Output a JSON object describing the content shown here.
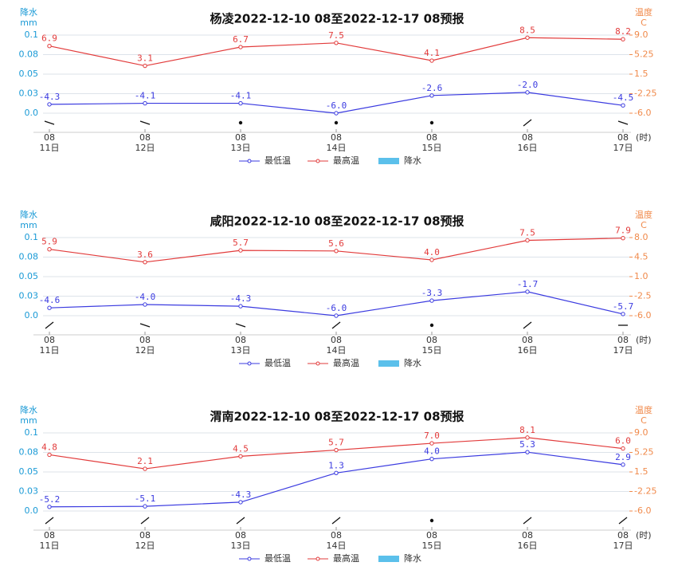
{
  "chart_data": [
    {
      "type": "line",
      "title": "杨凌2022-12-10 08至2022-12-17 08预报",
      "ylabel": "降水",
      "yunit": "mm",
      "y2label": "温度",
      "y2unit": "C",
      "x_unit": "(时)",
      "categories": [
        [
          "08",
          "11日"
        ],
        [
          "08",
          "12日"
        ],
        [
          "08",
          "13日"
        ],
        [
          "08",
          "14日"
        ],
        [
          "08",
          "15日"
        ],
        [
          "08",
          "16日"
        ],
        [
          "08",
          "17日"
        ]
      ],
      "ylim": [
        0,
        0.1
      ],
      "yticks": [
        {
          "value": 0,
          "label": "0.0"
        },
        {
          "value": 0.025,
          "label": "0.03"
        },
        0.05,
        {
          "value": 0.075,
          "label": "0.08"
        },
        0.1
      ],
      "y2lim": [
        -6,
        9
      ],
      "y2ticks": [
        {
          "value": -6,
          "label": "-6.0"
        },
        -2.25,
        1.5,
        5.25,
        {
          "value": 9,
          "label": "9.0"
        }
      ],
      "grid": true,
      "series": [
        {
          "name": "最低温",
          "color": "#3b3be0",
          "axis": "y2",
          "values": [
            -4.3,
            -4.1,
            -4.1,
            -6.0,
            -2.6,
            -2.0,
            -4.5
          ],
          "value_labels": [
            "-4.3",
            "-4.1",
            "-4.1",
            "-6.0",
            "-2.6",
            "-2.0",
            "-4.5"
          ]
        },
        {
          "name": "最高温",
          "color": "#e23b3b",
          "axis": "y2",
          "values": [
            6.9,
            3.1,
            6.7,
            7.5,
            4.1,
            8.5,
            8.2
          ],
          "value_labels": [
            "6.9",
            "3.1",
            "6.7",
            "7.5",
            "4.1",
            "8.5",
            "8.2"
          ]
        },
        {
          "name": "降水",
          "color": "#5bc0eb",
          "values": [
            0,
            0,
            0,
            0,
            0,
            0,
            0
          ]
        }
      ]
    },
    {
      "type": "line",
      "title": "咸阳2022-12-10 08至2022-12-17 08预报",
      "ylabel": "降水",
      "yunit": "mm",
      "y2label": "温度",
      "y2unit": "C",
      "x_unit": "(时)",
      "categories": [
        [
          "08",
          "11日"
        ],
        [
          "08",
          "12日"
        ],
        [
          "08",
          "13日"
        ],
        [
          "08",
          "14日"
        ],
        [
          "08",
          "15日"
        ],
        [
          "08",
          "16日"
        ],
        [
          "08",
          "17日"
        ]
      ],
      "ylim": [
        0,
        0.1
      ],
      "yticks": [
        {
          "value": 0,
          "label": "0.0"
        },
        {
          "value": 0.025,
          "label": "0.03"
        },
        0.05,
        {
          "value": 0.075,
          "label": "0.08"
        },
        0.1
      ],
      "y2lim": [
        -6,
        8
      ],
      "y2ticks": [
        {
          "value": -6,
          "label": "-6.0"
        },
        -2.5,
        {
          "value": 1,
          "label": "1.0"
        },
        4.5,
        {
          "value": 8,
          "label": "8.0"
        }
      ],
      "grid": true,
      "series": [
        {
          "name": "最低温",
          "color": "#3b3be0",
          "axis": "y2",
          "values": [
            -4.6,
            -4.0,
            -4.3,
            -6.0,
            -3.3,
            -1.7,
            -5.7
          ],
          "value_labels": [
            "-4.6",
            "-4.0",
            "-4.3",
            "-6.0",
            "-3.3",
            "-1.7",
            "-5.7"
          ]
        },
        {
          "name": "最高温",
          "color": "#e23b3b",
          "axis": "y2",
          "values": [
            5.9,
            3.6,
            5.7,
            5.6,
            4.0,
            7.5,
            7.9
          ],
          "value_labels": [
            "5.9",
            "3.6",
            "5.7",
            "5.6",
            "4.0",
            "7.5",
            "7.9"
          ]
        },
        {
          "name": "降水",
          "color": "#5bc0eb",
          "values": [
            0,
            0,
            0,
            0,
            0,
            0,
            0
          ]
        }
      ]
    },
    {
      "type": "line",
      "title": "渭南2022-12-10 08至2022-12-17 08预报",
      "ylabel": "降水",
      "yunit": "mm",
      "y2label": "温度",
      "y2unit": "C",
      "x_unit": "(时)",
      "categories": [
        [
          "08",
          "11日"
        ],
        [
          "08",
          "12日"
        ],
        [
          "08",
          "13日"
        ],
        [
          "08",
          "14日"
        ],
        [
          "08",
          "15日"
        ],
        [
          "08",
          "16日"
        ],
        [
          "08",
          "17日"
        ]
      ],
      "ylim": [
        0,
        0.1
      ],
      "yticks": [
        {
          "value": 0,
          "label": "0.0"
        },
        {
          "value": 0.025,
          "label": "0.03"
        },
        0.05,
        {
          "value": 0.075,
          "label": "0.08"
        },
        0.1
      ],
      "y2lim": [
        -6,
        9
      ],
      "y2ticks": [
        {
          "value": -6,
          "label": "-6.0"
        },
        -2.25,
        1.5,
        5.25,
        {
          "value": 9,
          "label": "9.0"
        }
      ],
      "grid": true,
      "series": [
        {
          "name": "最低温",
          "color": "#3b3be0",
          "axis": "y2",
          "values": [
            -5.2,
            -5.1,
            -4.3,
            1.3,
            4.0,
            5.3,
            2.9
          ],
          "value_labels": [
            "-5.2",
            "-5.1",
            "-4.3",
            "1.3",
            "4.0",
            "5.3",
            "2.9"
          ]
        },
        {
          "name": "最高温",
          "color": "#e23b3b",
          "axis": "y2",
          "values": [
            4.8,
            2.1,
            4.5,
            5.7,
            7.0,
            8.1,
            6.0
          ],
          "value_labels": [
            "4.8",
            "2.1",
            "4.5",
            "5.7",
            "7.0",
            "8.1",
            "6.0"
          ]
        },
        {
          "name": "降水",
          "color": "#5bc0eb",
          "values": [
            0,
            0,
            0,
            0,
            0,
            0,
            0
          ]
        }
      ]
    }
  ]
}
